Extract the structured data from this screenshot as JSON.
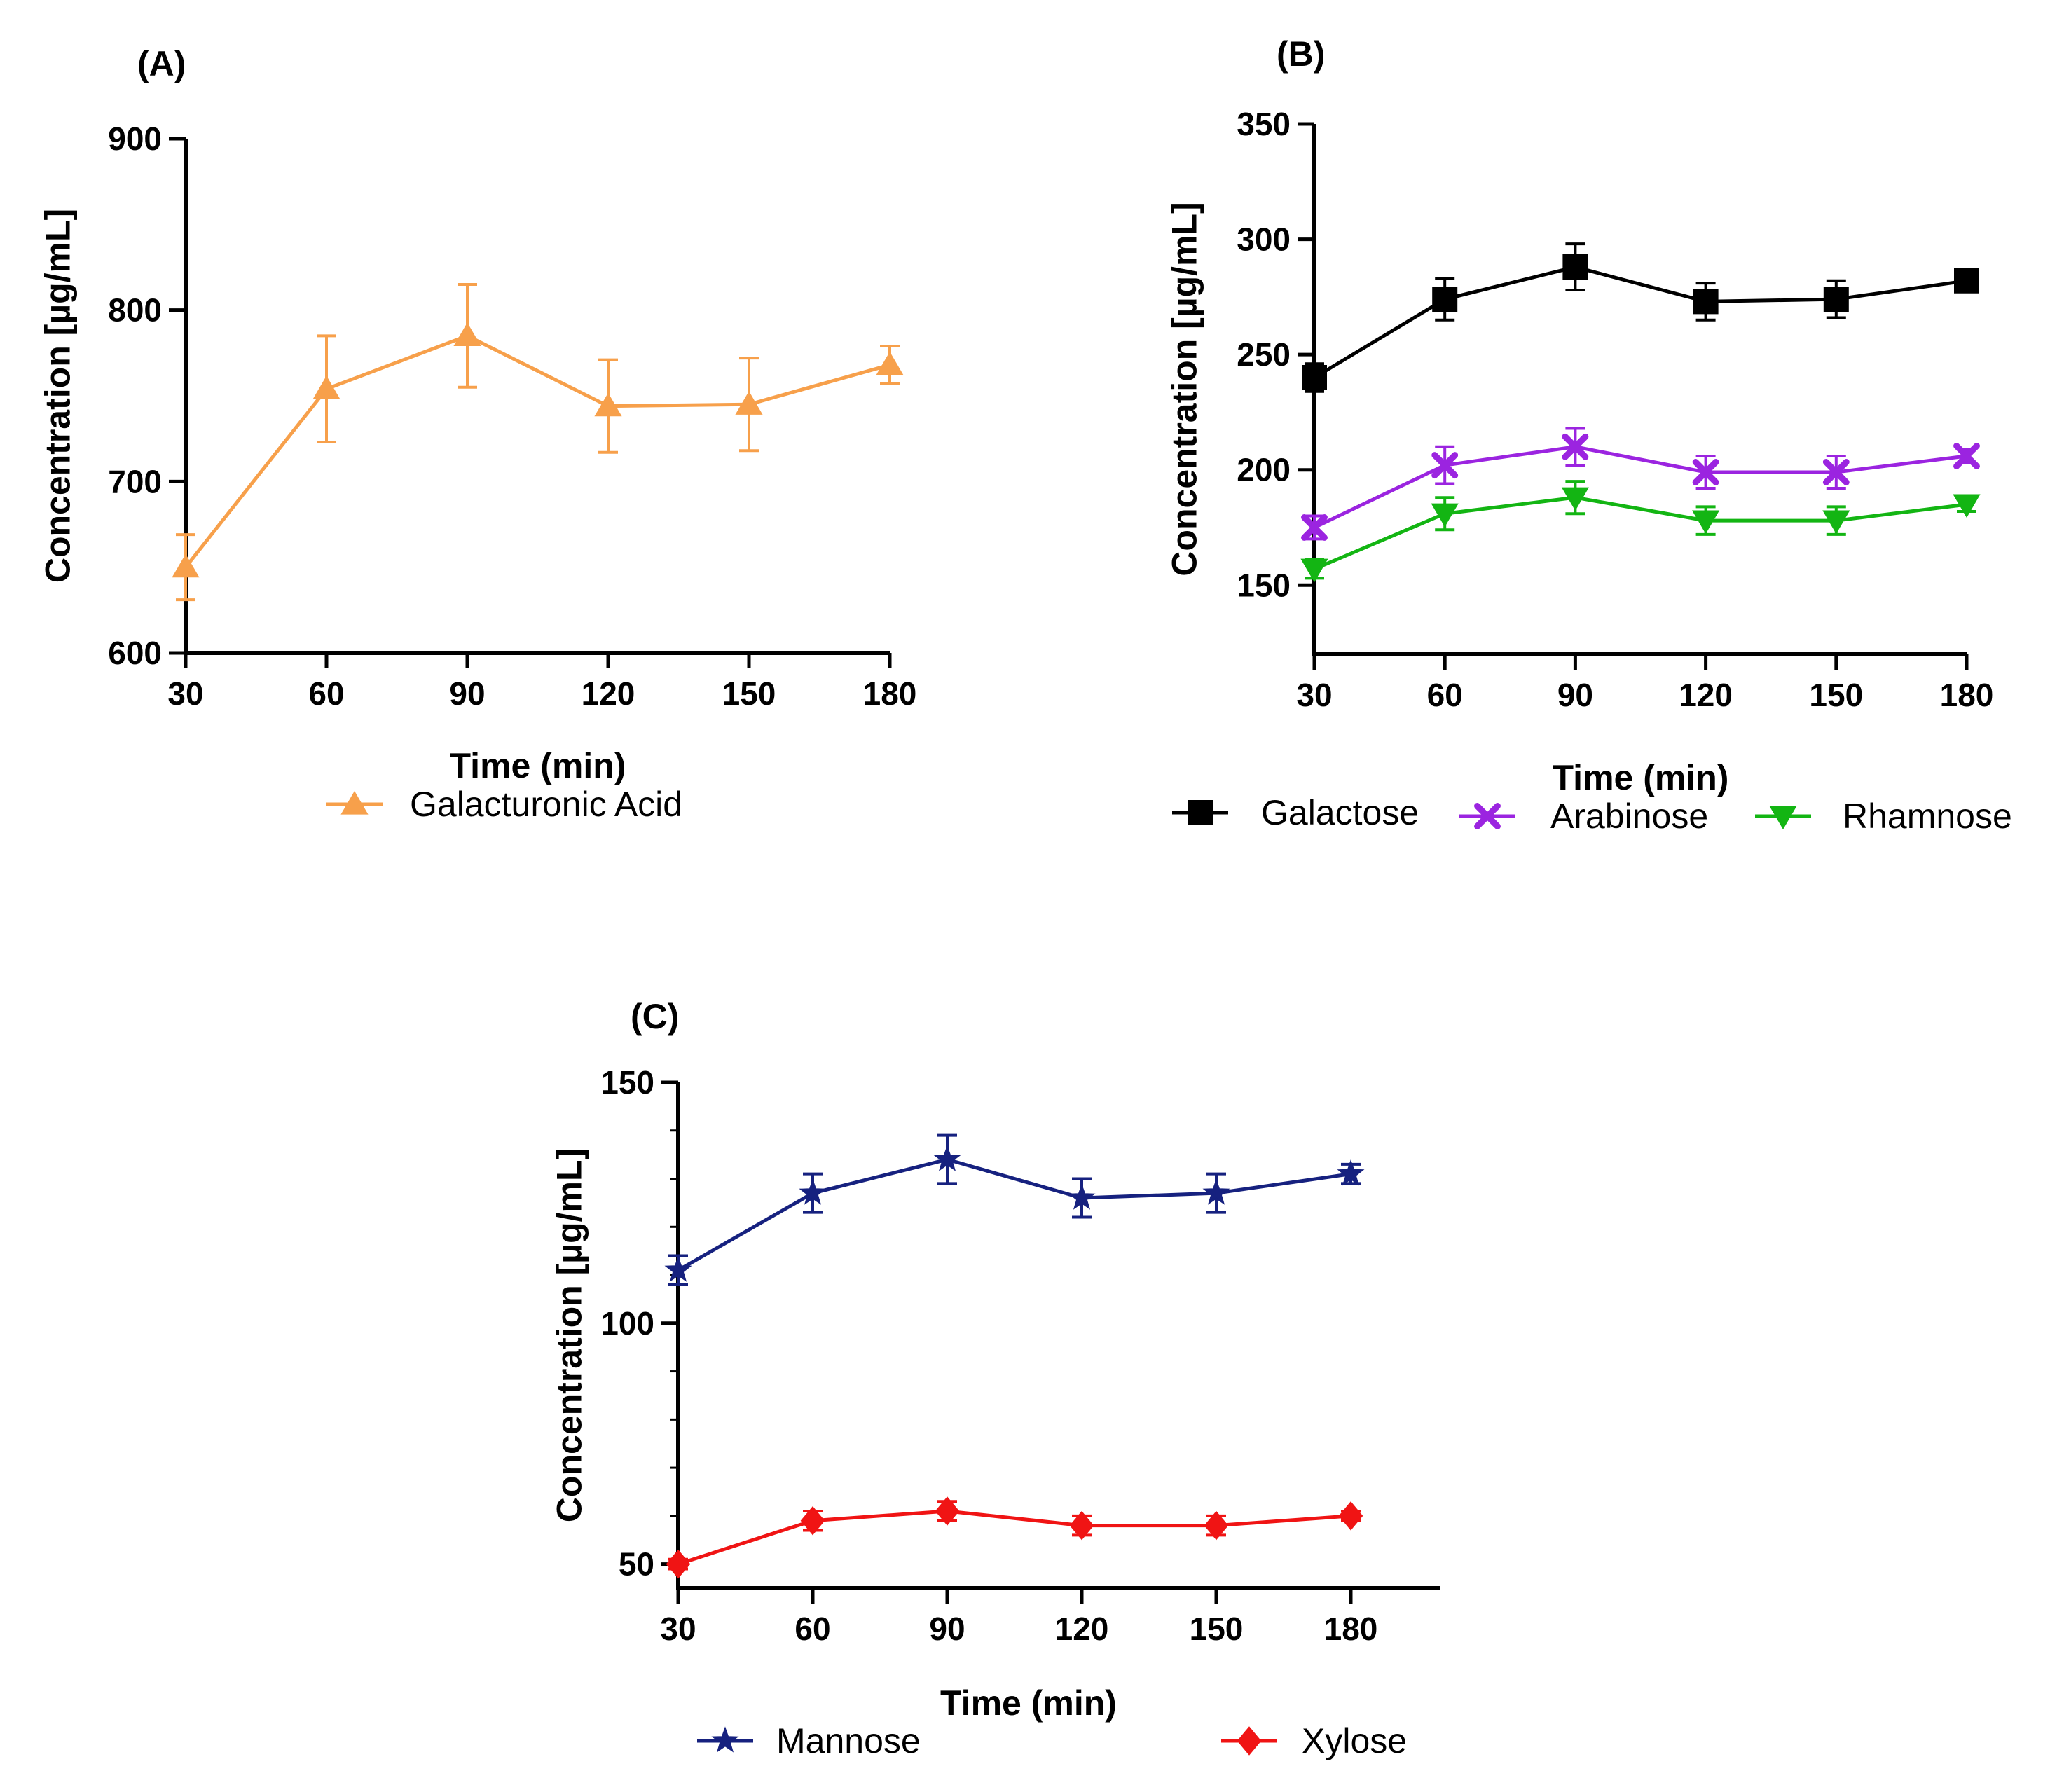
{
  "chart_data": [
    {
      "type": "line",
      "panel_label": "(A)",
      "title": "",
      "xlabel": "Time (min)",
      "ylabel": "Concentration [µg/mL]",
      "x": [
        30,
        60,
        90,
        120,
        150,
        180
      ],
      "xticks": [
        "30",
        "60",
        "90",
        "120",
        "150",
        "180"
      ],
      "xlim": [
        30,
        180
      ],
      "ylim": [
        600,
        900
      ],
      "yticks": [
        "600",
        "700",
        "800",
        "900"
      ],
      "grid": false,
      "legend": "bottom",
      "series": [
        {
          "name": "Galacturonic Acid",
          "marker": "triangle-up",
          "color": "#F7A04B",
          "values": [
            650,
            754,
            785,
            744,
            745,
            768
          ],
          "errors": [
            19,
            31,
            30,
            27,
            27,
            11
          ]
        }
      ]
    },
    {
      "type": "line",
      "panel_label": "(B)",
      "title": "",
      "xlabel": "Time (min)",
      "ylabel": "Concentration [µg/mL]",
      "x": [
        30,
        60,
        90,
        120,
        150,
        180
      ],
      "xticks": [
        "30",
        "60",
        "90",
        "120",
        "150",
        "180"
      ],
      "xlim": [
        30,
        180
      ],
      "ylim": [
        120,
        350
      ],
      "yticks": [
        "150",
        "200",
        "250",
        "300",
        "350"
      ],
      "grid": false,
      "legend": "bottom",
      "series": [
        {
          "name": "Galactose",
          "marker": "square",
          "color": "#000000",
          "values": [
            240,
            274,
            288,
            273,
            274,
            282
          ],
          "errors": [
            6,
            9,
            10,
            8,
            8,
            3
          ]
        },
        {
          "name": "Arabinose",
          "marker": "x",
          "color": "#9B24E0",
          "values": [
            175,
            202,
            210,
            199,
            199,
            206
          ],
          "errors": [
            5,
            8,
            8,
            7,
            7,
            3
          ]
        },
        {
          "name": "Rhamnose",
          "marker": "triangle-down",
          "color": "#13B513",
          "values": [
            157,
            181,
            188,
            178,
            178,
            185
          ],
          "errors": [
            4,
            7,
            7,
            6,
            6,
            3
          ]
        }
      ]
    },
    {
      "type": "line",
      "panel_label": "(C)",
      "title": "",
      "xlabel": "Time (min)",
      "ylabel": "Concentration [µg/mL]",
      "x": [
        30,
        60,
        90,
        120,
        150,
        180
      ],
      "xticks": [
        "30",
        "60",
        "90",
        "120",
        "150",
        "180"
      ],
      "xlim": [
        30,
        200
      ],
      "ylim": [
        45,
        150
      ],
      "yticks": [
        "50",
        "100",
        "150"
      ],
      "grid": false,
      "legend": "bottom",
      "series": [
        {
          "name": "Mannose",
          "marker": "star",
          "color": "#16217F",
          "values": [
            111,
            127,
            134,
            126,
            127,
            131
          ],
          "errors": [
            3,
            4,
            5,
            4,
            4,
            2
          ]
        },
        {
          "name": "Xylose",
          "marker": "diamond",
          "color": "#F01414",
          "values": [
            50,
            59,
            61,
            58,
            58,
            60
          ],
          "errors": [
            1,
            2,
            2,
            2,
            2,
            1
          ]
        }
      ]
    }
  ]
}
